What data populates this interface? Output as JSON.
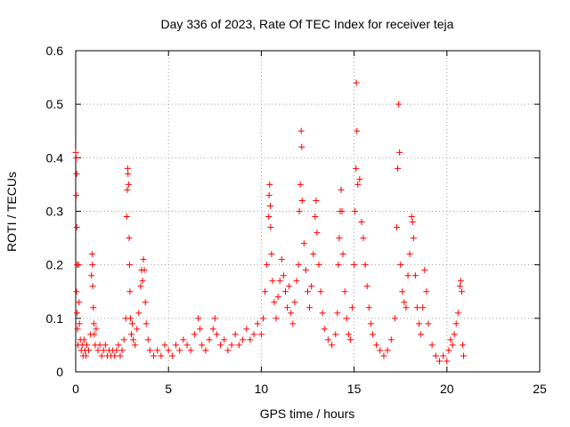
{
  "chart_data": {
    "type": "scatter",
    "title": "Day 336 of 2023, Rate Of TEC Index for receiver teja",
    "xlabel": "GPS time / hours",
    "ylabel": "ROTI / TECUs",
    "xlim": [
      0,
      25
    ],
    "ylim": [
      0,
      0.6
    ],
    "xticks": [
      0,
      5,
      10,
      15,
      20,
      25
    ],
    "yticks": [
      0,
      0.1,
      0.2,
      0.3,
      0.4,
      0.5,
      0.6
    ],
    "ytick_labels": [
      "0",
      "0.1",
      "0.2",
      "0.3",
      "0.4",
      "0.5",
      "0.6"
    ],
    "xtick_labels": [
      "0",
      "5",
      "10",
      "15",
      "20",
      "25"
    ],
    "grid": true,
    "marker": "+",
    "color": "#ff0000",
    "series": [
      {
        "points": [
          [
            0.0,
            0.41
          ],
          [
            0.02,
            0.4
          ],
          [
            0.05,
            0.37
          ],
          [
            0.03,
            0.33
          ],
          [
            0.06,
            0.27
          ],
          [
            0.08,
            0.2
          ],
          [
            0.04,
            0.15
          ],
          [
            0.07,
            0.11
          ],
          [
            0.1,
            0.08
          ],
          [
            0.12,
            0.05
          ],
          [
            0.15,
            0.2
          ],
          [
            0.18,
            0.13
          ],
          [
            0.2,
            0.09
          ],
          [
            0.25,
            0.06
          ],
          [
            0.3,
            0.04
          ],
          [
            0.35,
            0.05
          ],
          [
            0.4,
            0.03
          ],
          [
            0.45,
            0.06
          ],
          [
            0.5,
            0.04
          ],
          [
            0.55,
            0.03
          ],
          [
            0.6,
            0.05
          ],
          [
            0.7,
            0.04
          ],
          [
            0.8,
            0.07
          ],
          [
            0.85,
            0.18
          ],
          [
            0.88,
            0.22
          ],
          [
            0.9,
            0.2
          ],
          [
            0.92,
            0.16
          ],
          [
            0.95,
            0.12
          ],
          [
            0.98,
            0.09
          ],
          [
            1.0,
            0.07
          ],
          [
            1.05,
            0.05
          ],
          [
            1.1,
            0.08
          ],
          [
            1.2,
            0.04
          ],
          [
            1.3,
            0.05
          ],
          [
            1.4,
            0.03
          ],
          [
            1.5,
            0.04
          ],
          [
            1.6,
            0.05
          ],
          [
            1.7,
            0.03
          ],
          [
            1.8,
            0.04
          ],
          [
            1.9,
            0.03
          ],
          [
            2.0,
            0.04
          ],
          [
            2.1,
            0.03
          ],
          [
            2.2,
            0.04
          ],
          [
            2.3,
            0.05
          ],
          [
            2.4,
            0.03
          ],
          [
            2.5,
            0.04
          ],
          [
            2.6,
            0.06
          ],
          [
            2.7,
            0.1
          ],
          [
            2.75,
            0.29
          ],
          [
            2.78,
            0.34
          ],
          [
            2.8,
            0.38
          ],
          [
            2.82,
            0.37
          ],
          [
            2.85,
            0.35
          ],
          [
            2.88,
            0.25
          ],
          [
            2.9,
            0.2
          ],
          [
            2.92,
            0.15
          ],
          [
            2.95,
            0.1
          ],
          [
            3.0,
            0.07
          ],
          [
            3.05,
            0.09
          ],
          [
            3.1,
            0.06
          ],
          [
            3.2,
            0.05
          ],
          [
            3.3,
            0.08
          ],
          [
            3.4,
            0.11
          ],
          [
            3.5,
            0.16
          ],
          [
            3.55,
            0.19
          ],
          [
            3.6,
            0.17
          ],
          [
            3.65,
            0.21
          ],
          [
            3.7,
            0.19
          ],
          [
            3.75,
            0.13
          ],
          [
            3.8,
            0.09
          ],
          [
            3.9,
            0.06
          ],
          [
            4.0,
            0.04
          ],
          [
            4.2,
            0.03
          ],
          [
            4.4,
            0.04
          ],
          [
            4.6,
            0.03
          ],
          [
            4.8,
            0.05
          ],
          [
            5.0,
            0.04
          ],
          [
            5.2,
            0.03
          ],
          [
            5.4,
            0.05
          ],
          [
            5.6,
            0.04
          ],
          [
            5.8,
            0.06
          ],
          [
            6.0,
            0.05
          ],
          [
            6.2,
            0.04
          ],
          [
            6.4,
            0.07
          ],
          [
            6.6,
            0.1
          ],
          [
            6.7,
            0.08
          ],
          [
            6.8,
            0.05
          ],
          [
            7.0,
            0.04
          ],
          [
            7.2,
            0.06
          ],
          [
            7.4,
            0.08
          ],
          [
            7.5,
            0.1
          ],
          [
            7.6,
            0.07
          ],
          [
            7.8,
            0.05
          ],
          [
            8.0,
            0.06
          ],
          [
            8.2,
            0.04
          ],
          [
            8.4,
            0.05
          ],
          [
            8.6,
            0.07
          ],
          [
            8.8,
            0.05
          ],
          [
            9.0,
            0.06
          ],
          [
            9.2,
            0.08
          ],
          [
            9.4,
            0.06
          ],
          [
            9.6,
            0.07
          ],
          [
            9.8,
            0.09
          ],
          [
            10.0,
            0.07
          ],
          [
            10.1,
            0.1
          ],
          [
            10.2,
            0.15
          ],
          [
            10.3,
            0.2
          ],
          [
            10.4,
            0.29
          ],
          [
            10.42,
            0.33
          ],
          [
            10.45,
            0.35
          ],
          [
            10.48,
            0.31
          ],
          [
            10.5,
            0.27
          ],
          [
            10.55,
            0.22
          ],
          [
            10.6,
            0.17
          ],
          [
            10.7,
            0.13
          ],
          [
            10.8,
            0.1
          ],
          [
            10.9,
            0.14
          ],
          [
            11.0,
            0.17
          ],
          [
            11.1,
            0.21
          ],
          [
            11.2,
            0.18
          ],
          [
            11.3,
            0.15
          ],
          [
            11.4,
            0.12
          ],
          [
            11.5,
            0.16
          ],
          [
            11.6,
            0.11
          ],
          [
            11.7,
            0.09
          ],
          [
            11.8,
            0.13
          ],
          [
            11.9,
            0.17
          ],
          [
            12.0,
            0.2
          ],
          [
            12.05,
            0.3
          ],
          [
            12.1,
            0.35
          ],
          [
            12.15,
            0.45
          ],
          [
            12.18,
            0.42
          ],
          [
            12.2,
            0.32
          ],
          [
            12.3,
            0.24
          ],
          [
            12.4,
            0.19
          ],
          [
            12.5,
            0.15
          ],
          [
            12.6,
            0.12
          ],
          [
            12.7,
            0.16
          ],
          [
            12.8,
            0.22
          ],
          [
            12.9,
            0.29
          ],
          [
            12.95,
            0.32
          ],
          [
            13.0,
            0.26
          ],
          [
            13.1,
            0.2
          ],
          [
            13.2,
            0.15
          ],
          [
            13.3,
            0.11
          ],
          [
            13.4,
            0.08
          ],
          [
            13.6,
            0.06
          ],
          [
            13.8,
            0.05
          ],
          [
            14.0,
            0.07
          ],
          [
            14.1,
            0.11
          ],
          [
            14.15,
            0.2
          ],
          [
            14.2,
            0.25
          ],
          [
            14.25,
            0.3
          ],
          [
            14.3,
            0.34
          ],
          [
            14.35,
            0.3
          ],
          [
            14.4,
            0.22
          ],
          [
            14.5,
            0.15
          ],
          [
            14.6,
            0.1
          ],
          [
            14.7,
            0.07
          ],
          [
            14.8,
            0.06
          ],
          [
            14.9,
            0.12
          ],
          [
            15.0,
            0.2
          ],
          [
            15.05,
            0.3
          ],
          [
            15.1,
            0.38
          ],
          [
            15.12,
            0.54
          ],
          [
            15.15,
            0.45
          ],
          [
            15.2,
            0.35
          ],
          [
            15.3,
            0.36
          ],
          [
            15.4,
            0.28
          ],
          [
            15.5,
            0.25
          ],
          [
            15.6,
            0.2
          ],
          [
            15.7,
            0.16
          ],
          [
            15.8,
            0.12
          ],
          [
            15.9,
            0.09
          ],
          [
            16.0,
            0.07
          ],
          [
            16.2,
            0.05
          ],
          [
            16.4,
            0.04
          ],
          [
            16.6,
            0.03
          ],
          [
            16.8,
            0.04
          ],
          [
            17.0,
            0.06
          ],
          [
            17.2,
            0.1
          ],
          [
            17.3,
            0.27
          ],
          [
            17.35,
            0.38
          ],
          [
            17.4,
            0.5
          ],
          [
            17.45,
            0.41
          ],
          [
            17.5,
            0.2
          ],
          [
            17.6,
            0.15
          ],
          [
            17.7,
            0.13
          ],
          [
            17.8,
            0.12
          ],
          [
            17.9,
            0.18
          ],
          [
            18.0,
            0.22
          ],
          [
            18.1,
            0.29
          ],
          [
            18.15,
            0.28
          ],
          [
            18.2,
            0.25
          ],
          [
            18.3,
            0.18
          ],
          [
            18.4,
            0.12
          ],
          [
            18.5,
            0.09
          ],
          [
            18.6,
            0.07
          ],
          [
            18.7,
            0.12
          ],
          [
            18.8,
            0.19
          ],
          [
            18.9,
            0.15
          ],
          [
            19.0,
            0.09
          ],
          [
            19.2,
            0.05
          ],
          [
            19.4,
            0.03
          ],
          [
            19.6,
            0.02
          ],
          [
            19.8,
            0.03
          ],
          [
            20.0,
            0.02
          ],
          [
            20.1,
            0.04
          ],
          [
            20.2,
            0.06
          ],
          [
            20.3,
            0.05
          ],
          [
            20.4,
            0.07
          ],
          [
            20.5,
            0.09
          ],
          [
            20.6,
            0.11
          ],
          [
            20.7,
            0.16
          ],
          [
            20.75,
            0.17
          ],
          [
            20.8,
            0.15
          ],
          [
            20.85,
            0.05
          ],
          [
            20.9,
            0.03
          ]
        ]
      }
    ]
  }
}
